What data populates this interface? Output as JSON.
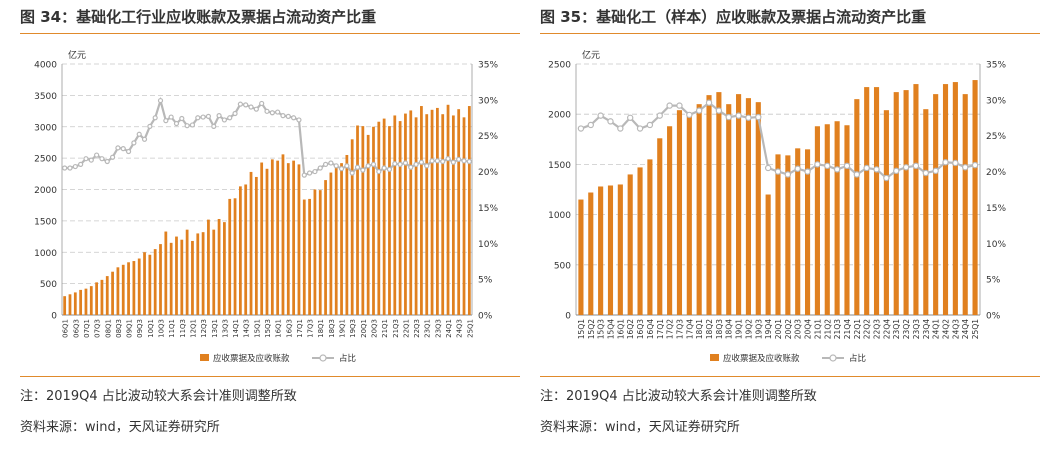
{
  "panels": [
    {
      "title": "图 34：基础化工行业应收账款及票据占流动资产比重",
      "note": "注：2019Q4 占比波动较大系会计准则调整所致",
      "source": "资料来源：wind，天风证券研究所"
    },
    {
      "title": "图 35：基础化工（样本）应收账款及票据占流动资产比重",
      "note": "注：2019Q4 占比波动较大系会计准则调整所致",
      "source": "资料来源：wind，天风证券研究所"
    }
  ],
  "chart_data": [
    {
      "type": "bar",
      "title": "",
      "y_unit": "亿元",
      "ylim": [
        0,
        4000
      ],
      "yticks": [
        0,
        500,
        1000,
        1500,
        2000,
        2500,
        3000,
        3500,
        4000
      ],
      "y2lim": [
        0,
        35
      ],
      "y2ticks": [
        "0%",
        "5%",
        "10%",
        "15%",
        "20%",
        "25%",
        "30%",
        "35%"
      ],
      "grid": true,
      "legend_position": "bottom-center",
      "bar_color": "#e0801f",
      "line_color": "#b8b8b8",
      "categories": [
        "06Q1",
        "06Q2",
        "06Q3",
        "06Q4",
        "07Q1",
        "07Q2",
        "07Q3",
        "07Q4",
        "08Q1",
        "08Q2",
        "08Q3",
        "08Q4",
        "09Q1",
        "09Q2",
        "09Q3",
        "09Q4",
        "10Q1",
        "10Q2",
        "10Q3",
        "10Q4",
        "11Q1",
        "11Q2",
        "11Q3",
        "11Q4",
        "12Q1",
        "12Q2",
        "12Q3",
        "12Q4",
        "13Q1",
        "13Q2",
        "13Q3",
        "13Q4",
        "14Q1",
        "14Q2",
        "14Q3",
        "14Q4",
        "15Q1",
        "15Q2",
        "15Q3",
        "15Q4",
        "16Q1",
        "16Q2",
        "16Q3",
        "16Q4",
        "17Q1",
        "17Q2",
        "17Q3",
        "17Q4",
        "18Q1",
        "18Q2",
        "18Q3",
        "18Q4",
        "19Q1",
        "19Q2",
        "19Q3",
        "19Q4",
        "20Q1",
        "20Q2",
        "20Q3",
        "20Q4",
        "21Q1",
        "21Q2",
        "21Q3",
        "21Q4",
        "22Q1",
        "22Q2",
        "22Q3",
        "22Q4",
        "23Q1",
        "23Q2",
        "23Q3",
        "23Q4",
        "24Q1",
        "24Q2",
        "24Q3",
        "24Q4",
        "25Q1"
      ],
      "xtick_labels": [
        "06Q1",
        "06Q3",
        "07Q1",
        "07Q3",
        "08Q1",
        "08Q3",
        "09Q1",
        "09Q3",
        "10Q1",
        "10Q3",
        "11Q1",
        "11Q3",
        "12Q1",
        "12Q3",
        "13Q1",
        "13Q3",
        "14Q1",
        "14Q3",
        "15Q1",
        "15Q3",
        "16Q1",
        "16Q3",
        "17Q1",
        "17Q3",
        "18Q1",
        "18Q3",
        "19Q1",
        "19Q3",
        "20Q1",
        "20Q3",
        "21Q1",
        "21Q3",
        "22Q1",
        "22Q3",
        "23Q1",
        "23Q3",
        "24Q1",
        "24Q3",
        "25Q1"
      ],
      "series": [
        {
          "name": "应收票据及应收账款",
          "type": "bar",
          "axis": "left",
          "values": [
            300,
            330,
            360,
            400,
            420,
            460,
            520,
            560,
            620,
            690,
            760,
            800,
            840,
            860,
            900,
            1000,
            960,
            1050,
            1130,
            1330,
            1150,
            1250,
            1200,
            1360,
            1180,
            1300,
            1320,
            1520,
            1360,
            1530,
            1480,
            1850,
            1860,
            2050,
            2080,
            2280,
            2200,
            2430,
            2330,
            2480,
            2460,
            2560,
            2420,
            2460,
            2400,
            1840,
            1850,
            2000,
            1990,
            2150,
            2270,
            2350,
            2420,
            2550,
            2800,
            3020,
            3010,
            2870,
            3000,
            3080,
            3130,
            3010,
            3180,
            3090,
            3210,
            3260,
            3150,
            3330,
            3200,
            3270,
            3300,
            3200,
            3350,
            3180,
            3280,
            3150,
            3330
          ]
        },
        {
          "name": "占比",
          "type": "line",
          "axis": "right",
          "values": [
            20.5,
            20.5,
            20.7,
            21.0,
            21.8,
            21.6,
            22.3,
            21.8,
            21.4,
            22.0,
            23.3,
            23.2,
            22.8,
            24.0,
            25.2,
            24.5,
            26.3,
            27.5,
            29.9,
            27.1,
            27.6,
            26.7,
            27.4,
            26.4,
            26.5,
            27.5,
            27.6,
            27.7,
            26.3,
            27.8,
            27.2,
            27.5,
            28.1,
            29.4,
            29.3,
            29.0,
            28.7,
            29.5,
            28.4,
            28.2,
            28.3,
            27.8,
            27.7,
            27.5,
            27.2,
            19.5,
            19.8,
            20.0,
            20.5,
            21.0,
            21.2,
            20.8,
            20.4,
            20.8,
            19.8,
            20.6,
            20.2,
            20.8,
            21.0,
            20.0,
            20.5,
            20.3,
            21.1,
            21.0,
            21.2,
            20.6,
            21.0,
            21.3,
            20.8,
            21.5,
            21.5,
            21.4,
            21.8,
            21.3,
            21.7,
            21.5,
            21.4
          ]
        }
      ]
    },
    {
      "type": "bar",
      "title": "",
      "y_unit": "亿元",
      "ylim": [
        0,
        2500
      ],
      "yticks": [
        0,
        500,
        1000,
        1500,
        2000,
        2500
      ],
      "y2lim": [
        0,
        35
      ],
      "y2ticks": [
        "0%",
        "5%",
        "10%",
        "15%",
        "20%",
        "25%",
        "30%",
        "35%"
      ],
      "grid": true,
      "legend_position": "bottom-center",
      "bar_color": "#e0801f",
      "line_color": "#b8b8b8",
      "categories": [
        "15Q1",
        "15Q2",
        "15Q3",
        "15Q4",
        "16Q1",
        "16Q2",
        "16Q3",
        "16Q4",
        "17Q1",
        "17Q2",
        "17Q3",
        "17Q4",
        "18Q1",
        "18Q2",
        "18Q3",
        "18Q4",
        "19Q1",
        "19Q2",
        "19Q3",
        "19Q4",
        "20Q1",
        "20Q2",
        "20Q3",
        "20Q4",
        "21Q1",
        "21Q2",
        "21Q3",
        "21Q4",
        "22Q1",
        "22Q2",
        "22Q3",
        "22Q4",
        "23Q1",
        "23Q2",
        "23Q3",
        "23Q4",
        "24Q1",
        "24Q2",
        "24Q3",
        "24Q4",
        "25Q1"
      ],
      "xtick_labels": [
        "15Q1",
        "15Q2",
        "15Q3",
        "15Q4",
        "16Q1",
        "16Q2",
        "16Q3",
        "16Q4",
        "17Q1",
        "17Q2",
        "17Q3",
        "17Q4",
        "18Q1",
        "18Q2",
        "18Q3",
        "18Q4",
        "19Q1",
        "19Q2",
        "19Q3",
        "19Q4",
        "20Q1",
        "20Q2",
        "20Q3",
        "20Q4",
        "21Q1",
        "21Q2",
        "21Q3",
        "21Q4",
        "22Q1",
        "22Q2",
        "22Q3",
        "22Q4",
        "23Q1",
        "23Q2",
        "23Q3",
        "23Q4",
        "24Q1",
        "24Q2",
        "24Q3",
        "24Q4",
        "25Q1"
      ],
      "series": [
        {
          "name": "应收票据及应收账款",
          "type": "bar",
          "axis": "left",
          "values": [
            1150,
            1220,
            1280,
            1290,
            1300,
            1400,
            1470,
            1550,
            1760,
            1880,
            2040,
            2010,
            2100,
            2190,
            2220,
            2100,
            2200,
            2160,
            2120,
            1200,
            1600,
            1590,
            1660,
            1650,
            1880,
            1900,
            1930,
            1890,
            2150,
            2270,
            2270,
            2040,
            2220,
            2240,
            2300,
            2050,
            2200,
            2300,
            2320,
            2200,
            2340
          ]
        },
        {
          "name": "占比",
          "type": "line",
          "axis": "right",
          "values": [
            26.0,
            26.5,
            27.8,
            27.0,
            26.0,
            27.5,
            26.0,
            26.5,
            27.8,
            29.2,
            29.2,
            27.9,
            28.5,
            29.6,
            28.5,
            27.6,
            27.8,
            27.5,
            27.6,
            20.5,
            20.0,
            19.6,
            20.4,
            20.0,
            21.0,
            20.8,
            20.3,
            20.8,
            19.6,
            20.5,
            20.3,
            19.1,
            20.1,
            20.6,
            20.8,
            19.8,
            20.1,
            21.3,
            21.2,
            20.6,
            20.9
          ]
        }
      ]
    }
  ]
}
